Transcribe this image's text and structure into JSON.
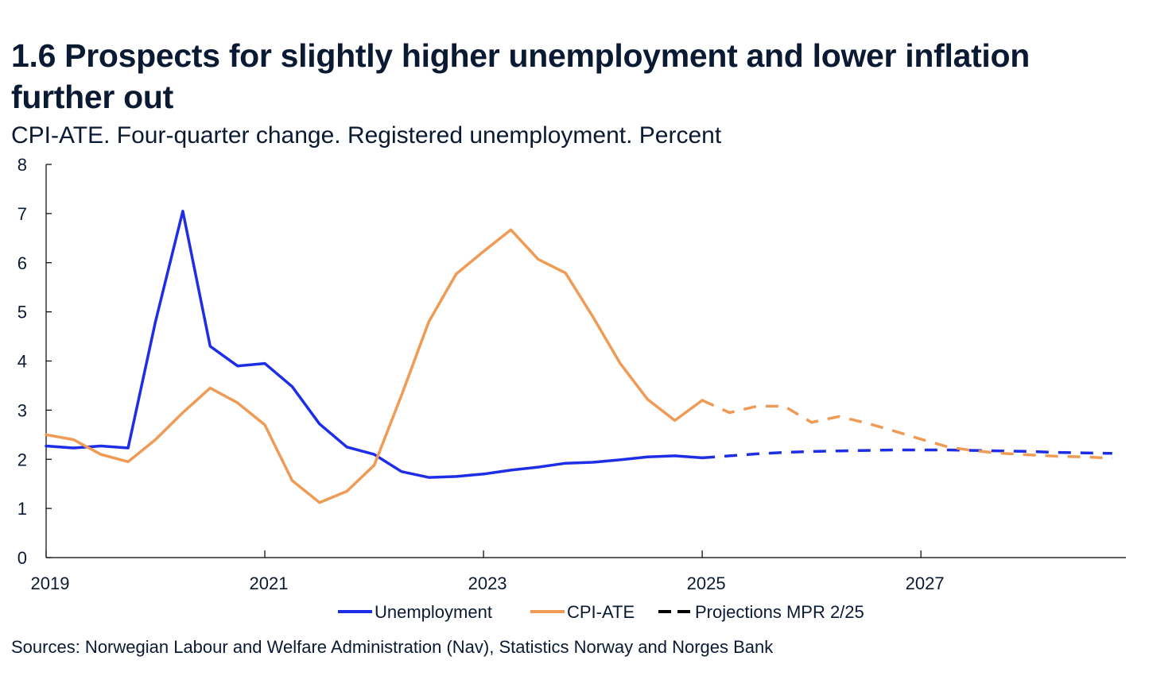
{
  "chart_data": {
    "type": "line",
    "title": "1.6 Prospects for slightly higher unemployment and lower inflation further out",
    "subtitle": "CPI-ATE. Four-quarter change. Registered unemployment. Percent",
    "xlabel": "",
    "ylabel": "",
    "xlim": [
      2019.0,
      2028.875
    ],
    "ylim": [
      0,
      8
    ],
    "y_ticks": [
      0,
      1,
      2,
      3,
      4,
      5,
      6,
      7,
      8
    ],
    "x_ticks": [
      2019,
      2021,
      2023,
      2025,
      2027
    ],
    "x_tick_labels": [
      "2019",
      "2021",
      "2023",
      "2025",
      "2027"
    ],
    "grid": false,
    "legend_position": "bottom-center",
    "legend": [
      {
        "label": "Unemployment",
        "color": "#1e2ee6",
        "style": "solid"
      },
      {
        "label": "CPI-ATE",
        "color": "#ef9b55",
        "style": "solid"
      },
      {
        "label": "Projections MPR 2/25",
        "color": "#000000",
        "style": "dashed"
      }
    ],
    "series": [
      {
        "name": "Unemployment",
        "color": "#1e2ee6",
        "x": [
          2019.0,
          2019.25,
          2019.5,
          2019.75,
          2020.0,
          2020.25,
          2020.5,
          2020.75,
          2021.0,
          2021.25,
          2021.5,
          2021.75,
          2022.0,
          2022.25,
          2022.5,
          2022.75,
          2023.0,
          2023.25,
          2023.5,
          2023.75,
          2024.0,
          2024.25,
          2024.5,
          2024.75,
          2025.0
        ],
        "values": [
          2.27,
          2.23,
          2.27,
          2.23,
          4.8,
          7.05,
          4.3,
          3.9,
          3.95,
          3.48,
          2.72,
          2.25,
          2.1,
          1.75,
          1.63,
          1.65,
          1.7,
          1.78,
          1.84,
          1.92,
          1.94,
          1.99,
          2.05,
          2.07,
          2.03
        ],
        "projection_x": [
          2025.0,
          2025.25,
          2025.5,
          2025.75,
          2026.0,
          2026.25,
          2026.5,
          2026.75,
          2027.0,
          2027.25,
          2027.5,
          2027.75,
          2028.0,
          2028.25,
          2028.5,
          2028.75
        ],
        "projection_values": [
          2.03,
          2.07,
          2.11,
          2.14,
          2.16,
          2.17,
          2.18,
          2.19,
          2.19,
          2.19,
          2.18,
          2.17,
          2.16,
          2.14,
          2.13,
          2.12
        ]
      },
      {
        "name": "CPI-ATE",
        "color": "#ef9b55",
        "x": [
          2019.0,
          2019.25,
          2019.5,
          2019.75,
          2020.0,
          2020.25,
          2020.5,
          2020.75,
          2021.0,
          2021.25,
          2021.5,
          2021.75,
          2022.0,
          2022.25,
          2022.5,
          2022.75,
          2023.0,
          2023.25,
          2023.5,
          2023.75,
          2024.0,
          2024.25,
          2024.5,
          2024.75,
          2025.0
        ],
        "values": [
          2.5,
          2.4,
          2.1,
          1.95,
          2.4,
          2.95,
          3.45,
          3.15,
          2.7,
          1.57,
          1.12,
          1.35,
          1.88,
          3.3,
          4.8,
          5.77,
          6.23,
          6.67,
          6.07,
          5.79,
          4.9,
          3.95,
          3.22,
          2.79,
          3.2
        ],
        "projection_x": [
          2025.0,
          2025.25,
          2025.5,
          2025.75,
          2026.0,
          2026.25,
          2026.5,
          2026.75,
          2027.0,
          2027.25,
          2027.5,
          2027.75,
          2028.0,
          2028.25,
          2028.5,
          2028.75
        ],
        "projection_values": [
          3.2,
          2.95,
          3.08,
          3.08,
          2.75,
          2.87,
          2.74,
          2.58,
          2.41,
          2.25,
          2.17,
          2.12,
          2.09,
          2.06,
          2.05,
          2.02
        ]
      }
    ]
  },
  "source": "Sources: Norwegian  Labour and Welfare Administration (Nav), Statistics Norway and  Norges Bank",
  "colors": {
    "axis": "#000000",
    "text": "#0b1a33"
  }
}
